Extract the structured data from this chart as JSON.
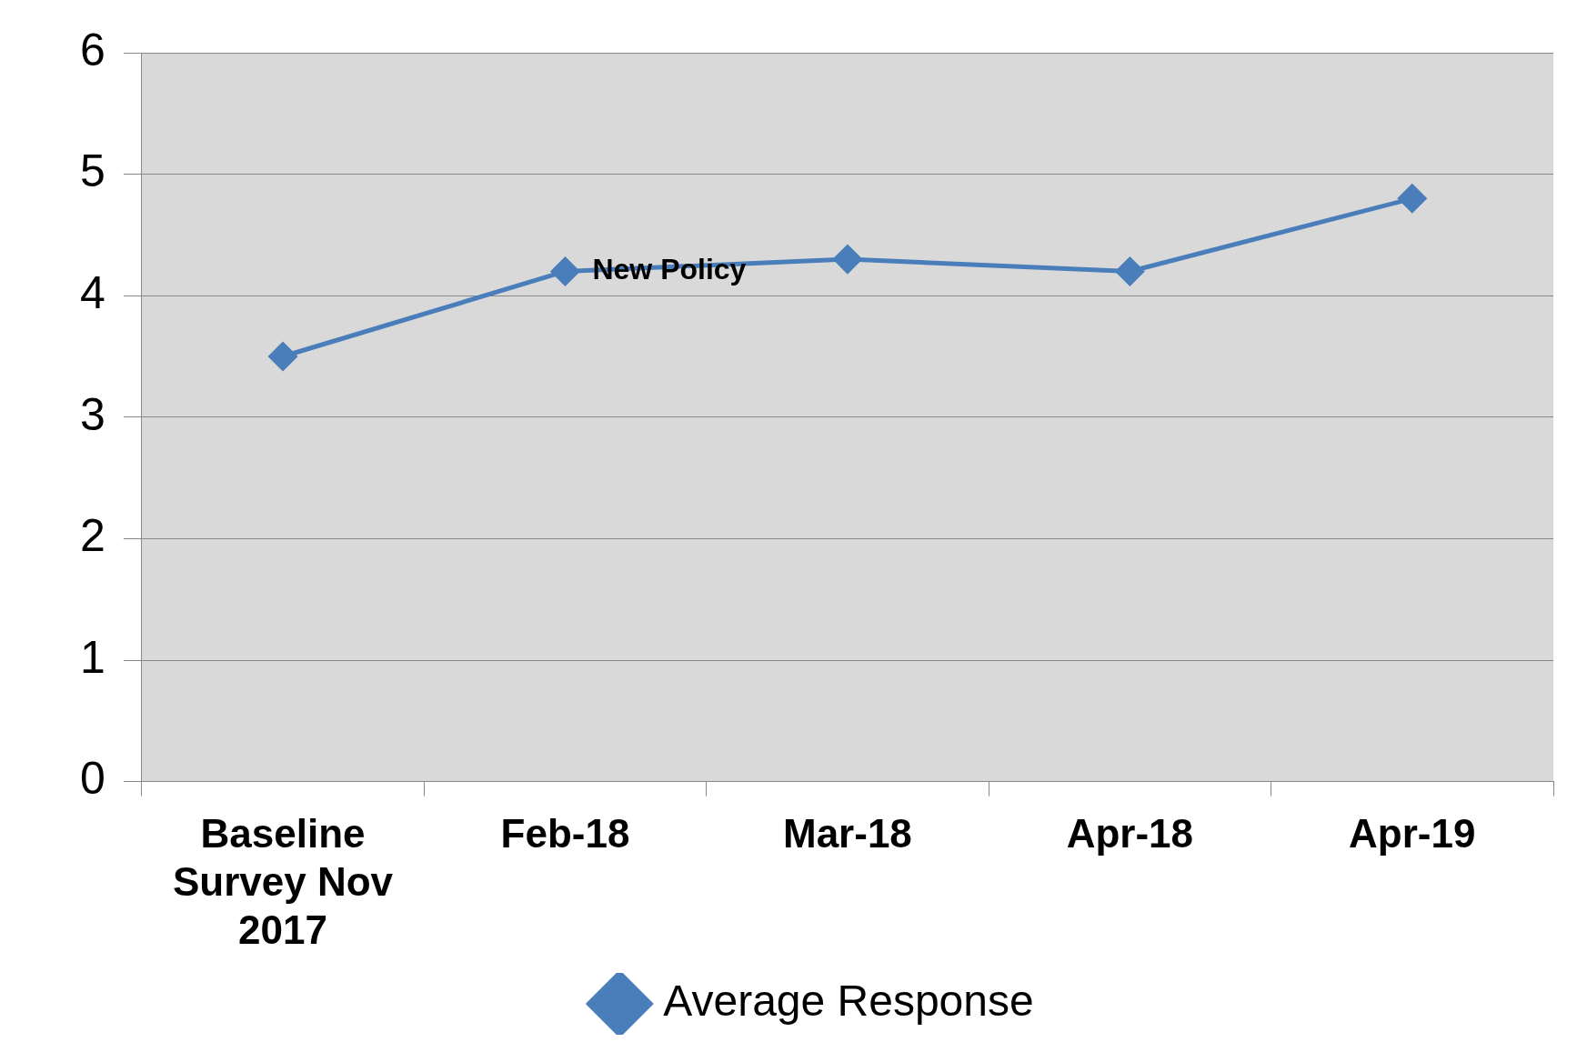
{
  "chart_data": {
    "type": "line",
    "categories": [
      "Baseline Survey Nov 2017",
      "Feb-18",
      "Mar-18",
      "Apr-18",
      "Apr-19"
    ],
    "series": [
      {
        "name": "Average Response",
        "color": "#4a7ebb",
        "values": [
          3.5,
          4.2,
          4.3,
          4.2,
          4.8
        ]
      }
    ],
    "ylim": [
      0,
      6
    ],
    "yticks": [
      0,
      1,
      2,
      3,
      4,
      5,
      6
    ],
    "grid": "y",
    "legend": "bottom",
    "marker": "diamond",
    "line_style": "solid",
    "annotations": [
      {
        "text": "New Policy",
        "x": "Feb-18",
        "y": 4.2
      }
    ]
  }
}
